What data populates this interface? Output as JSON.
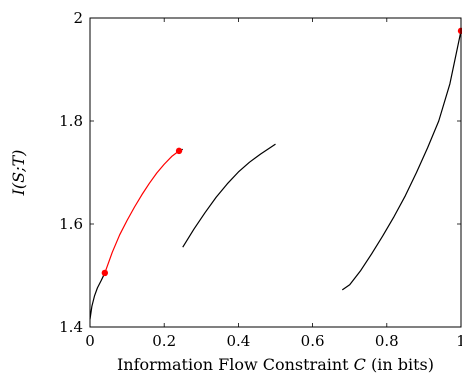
{
  "chart_data": {
    "type": "line",
    "title": "",
    "xlabel_prefix": "Information Flow Constraint ",
    "xlabel_var": "C",
    "xlabel_suffix": " (in bits)",
    "ylabel": "I(S;T)",
    "xlim": [
      0,
      1
    ],
    "ylim": [
      1.4,
      2.0
    ],
    "xticks": [
      0,
      0.2,
      0.4,
      0.6,
      0.8,
      1
    ],
    "xtick_labels": [
      "0",
      "0.2",
      "0.4",
      "0.6",
      "0.8",
      "1"
    ],
    "yticks": [
      1.4,
      1.6,
      1.8,
      2.0
    ],
    "ytick_labels": [
      "1.4",
      "1.6",
      "1.8",
      "2"
    ],
    "grid": false,
    "colors": {
      "black": "#000000",
      "red": "#ff0000"
    },
    "series": [
      {
        "color": "#000000",
        "x": [
          0.0,
          0.005,
          0.012,
          0.02,
          0.03,
          0.04
        ],
        "y": [
          1.415,
          1.44,
          1.46,
          1.476,
          1.49,
          1.505
        ]
      },
      {
        "color": "#ff0000",
        "x": [
          0.04,
          0.06,
          0.08,
          0.1,
          0.12,
          0.14,
          0.16,
          0.18,
          0.2,
          0.22,
          0.24
        ],
        "y": [
          1.505,
          1.545,
          1.579,
          1.607,
          1.633,
          1.657,
          1.679,
          1.699,
          1.716,
          1.731,
          1.742
        ]
      },
      {
        "color": "#000000",
        "x": [
          0.24,
          0.25
        ],
        "y": [
          1.742,
          1.745
        ]
      },
      {
        "color": "#000000",
        "x": [
          0.25,
          0.28,
          0.31,
          0.34,
          0.37,
          0.4,
          0.43,
          0.46,
          0.5
        ],
        "y": [
          1.555,
          1.59,
          1.622,
          1.652,
          1.678,
          1.701,
          1.72,
          1.736,
          1.755
        ]
      },
      {
        "color": "#000000",
        "x": [
          0.68,
          0.7,
          0.73,
          0.76,
          0.79,
          0.82,
          0.85,
          0.88,
          0.91,
          0.94,
          0.97,
          1.0
        ],
        "y": [
          1.472,
          1.482,
          1.51,
          1.543,
          1.578,
          1.615,
          1.655,
          1.7,
          1.748,
          1.8,
          1.872,
          1.975
        ]
      }
    ],
    "markers": [
      {
        "x": 0.04,
        "y": 1.505,
        "color": "#ff0000"
      },
      {
        "x": 0.24,
        "y": 1.742,
        "color": "#ff0000"
      },
      {
        "x": 1.0,
        "y": 1.975,
        "color": "#ff0000"
      }
    ]
  }
}
